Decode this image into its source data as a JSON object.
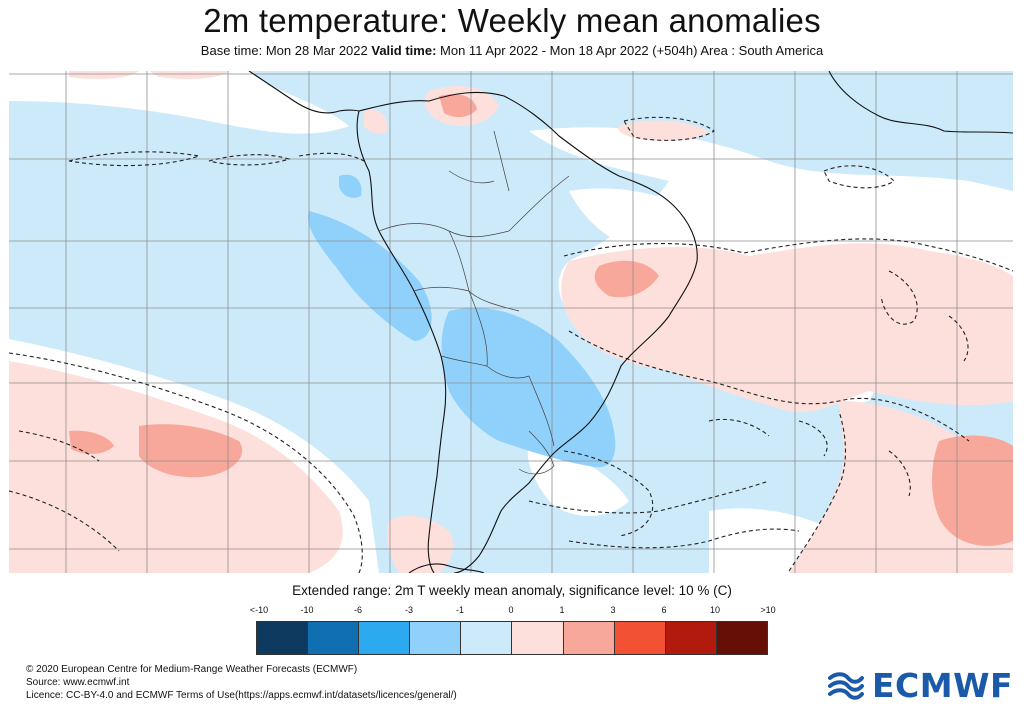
{
  "title": "2m temperature: Weekly mean anomalies",
  "subtitle": {
    "base_label": "Base time:",
    "base_value": "Mon 28 Mar 2022",
    "valid_label": "Valid time:",
    "valid_value": "Mon 11 Apr 2022 - Mon 18 Apr 2022 (+504h)",
    "area_label": "Area :",
    "area_value": "South America"
  },
  "legend": {
    "title": "Extended range: 2m T weekly mean anomaly, significance level: 10 % (C)",
    "ticks": [
      "<-10",
      "-10",
      "-6",
      "-3",
      "-1",
      "0",
      "1",
      "3",
      "6",
      "10",
      ">10"
    ],
    "colors": [
      "#0d3a5e",
      "#0f6fb0",
      "#2ca9ef",
      "#90d1fb",
      "#cdeafb",
      "#fde0dc",
      "#f8a89a",
      "#f25134",
      "#b21a0e",
      "#650f07"
    ]
  },
  "footer": {
    "line1": "© 2020 European Centre for Medium-Range Weather Forecasts (ECMWF)",
    "line2": "Source: www.ecmwf.int",
    "line3": "Licence: CC-BY-4.0 and ECMWF Terms of Use(https://apps.ecmwf.int/datasets/licences/general/)"
  },
  "logo": {
    "text": "ECMWF",
    "color": "#1a5aa8"
  },
  "map_colors": {
    "light_blue": "#cdeafb",
    "mid_blue": "#90d1fb",
    "light_pink": "#fde0dc",
    "mid_pink": "#f8a89a",
    "white": "#ffffff"
  }
}
